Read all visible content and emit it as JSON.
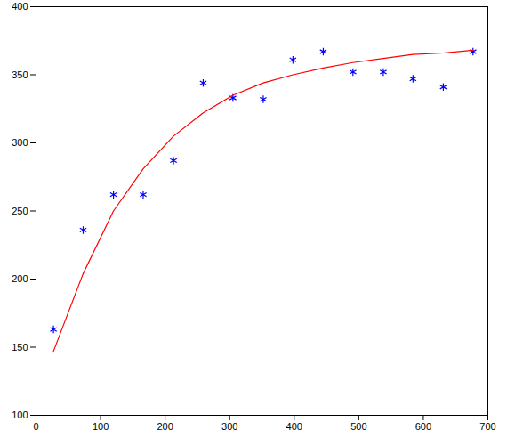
{
  "chart_data": {
    "type": "line",
    "x": [
      27,
      73,
      120,
      166,
      213,
      259,
      305,
      352,
      398,
      445,
      491,
      538,
      584,
      631,
      677
    ],
    "series": [
      {
        "type": "scatter",
        "color": "#0000ff",
        "marker": "asterisk",
        "values": [
          163,
          236,
          262,
          262,
          287,
          344,
          333,
          332,
          361,
          367,
          352,
          352,
          347,
          341,
          367
        ]
      },
      {
        "type": "line",
        "color": "#ff0000",
        "line_style": "solid",
        "values": [
          147,
          204,
          250,
          281,
          305,
          322,
          335,
          344,
          350,
          355,
          359,
          362,
          365,
          366,
          368
        ]
      }
    ],
    "xlim": [
      0,
      700
    ],
    "xticks": [
      0,
      100,
      200,
      300,
      400,
      500,
      600,
      700
    ],
    "ylim": [
      100,
      400
    ],
    "yticks": [
      100,
      150,
      200,
      250,
      300,
      350,
      400
    ],
    "grid": false
  }
}
